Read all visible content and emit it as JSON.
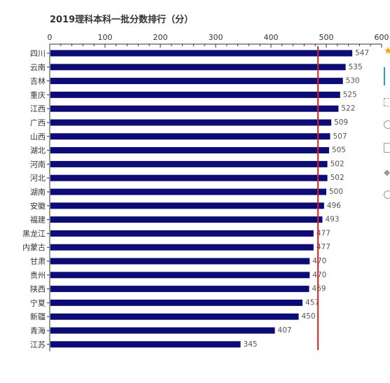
{
  "chart_data": {
    "type": "bar",
    "orientation": "horizontal",
    "title": "2019理科本科一批分数排行（分）",
    "xlim": [
      0,
      600
    ],
    "xticks": [
      "0",
      "100",
      "200",
      "300",
      "400",
      "500",
      "600"
    ],
    "reference_line": 485,
    "bar_color": "#0b0b7a",
    "reference_line_color": "#e01f1f",
    "categories": [
      "四川",
      "云南",
      "吉林",
      "重庆",
      "江西",
      "广西",
      "山西",
      "湖北",
      "河南",
      "河北",
      "湖南",
      "安徽",
      "福建",
      "黑龙江",
      "内蒙古",
      "甘肃",
      "贵州",
      "陕西",
      "宁夏",
      "新疆",
      "青海",
      "江苏"
    ],
    "values": [
      547,
      535,
      530,
      525,
      522,
      509,
      507,
      505,
      502,
      502,
      500,
      496,
      493,
      477,
      477,
      470,
      470,
      469,
      457,
      450,
      407,
      345
    ]
  }
}
